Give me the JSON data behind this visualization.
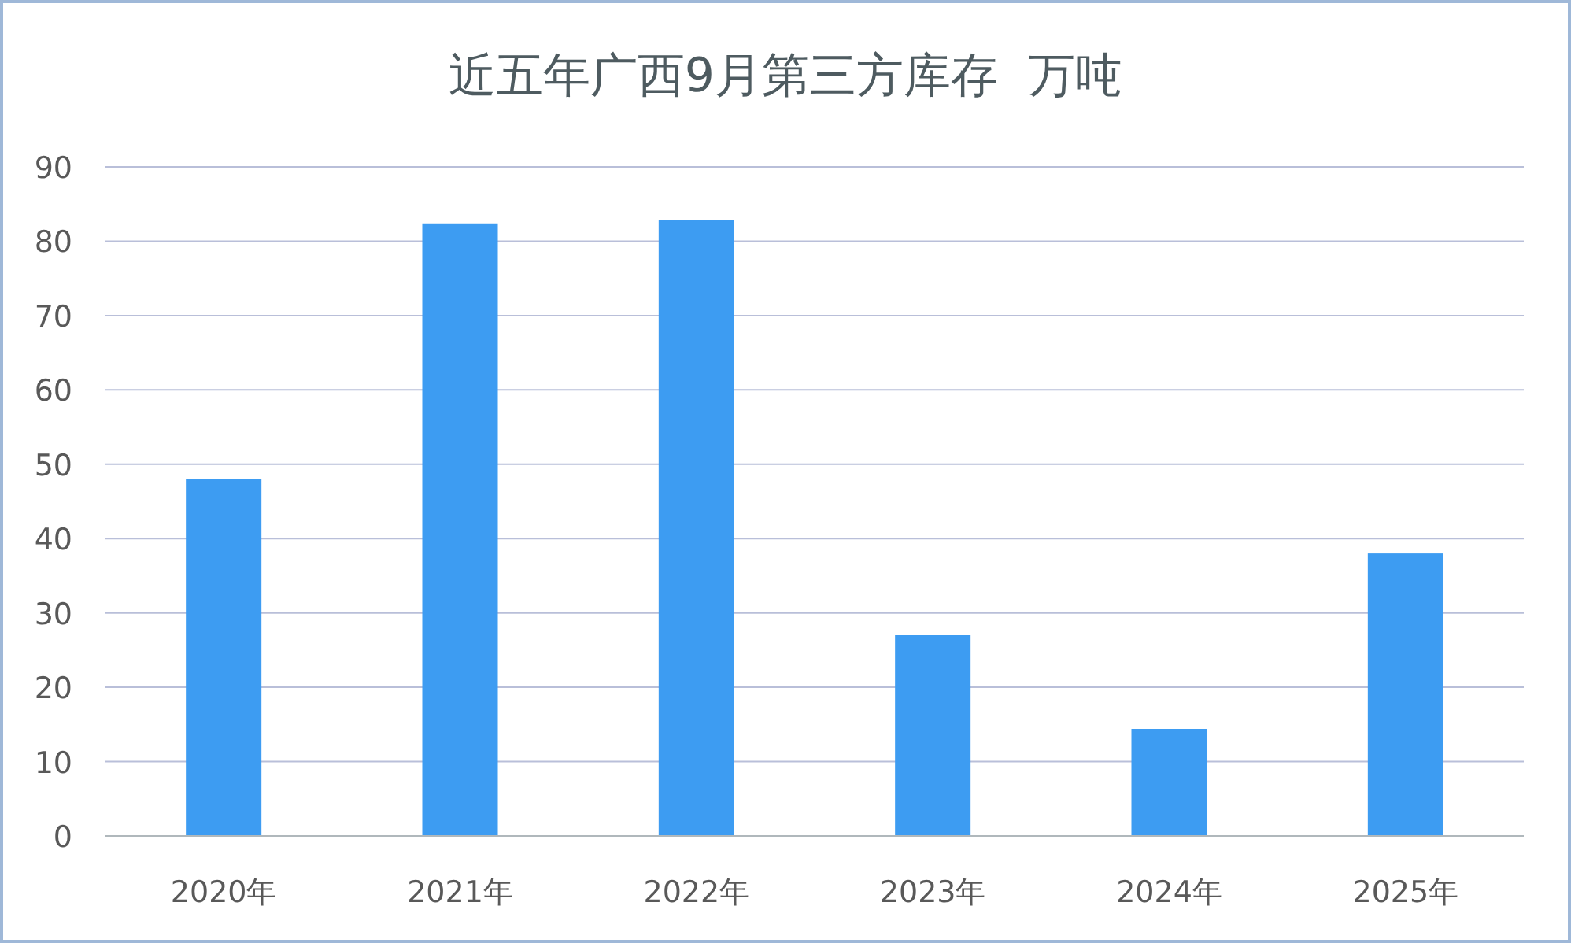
{
  "chart_data": {
    "type": "bar",
    "title": "近五年广西9月第三方库存  万吨",
    "categories": [
      "2020年",
      "2021年",
      "2022年",
      "2023年",
      "2024年",
      "2025年"
    ],
    "values": [
      48,
      82.4,
      82.8,
      27,
      14.4,
      38
    ],
    "color": "#3d9cf2",
    "ylim": [
      0,
      90
    ],
    "yticks": [
      0,
      10,
      20,
      30,
      40,
      50,
      60,
      70,
      80,
      90
    ],
    "grid": "y"
  }
}
